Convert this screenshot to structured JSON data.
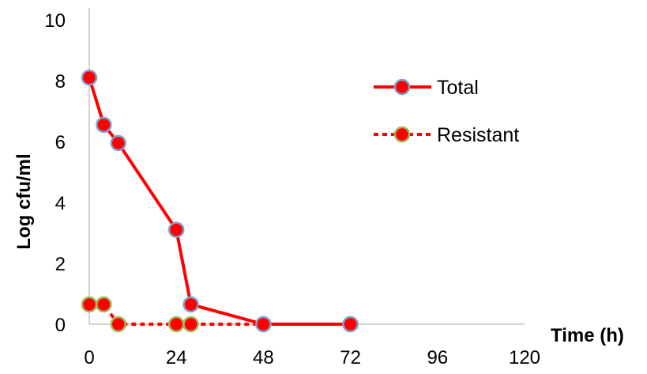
{
  "chart_data": {
    "type": "line",
    "xlabel": "Time (h)",
    "ylabel": "Log cfu/ml",
    "xlim": [
      0,
      120
    ],
    "ylim": [
      0,
      10
    ],
    "x_ticks": [
      "0",
      "24",
      "48",
      "72",
      "96",
      "120"
    ],
    "y_ticks": [
      "0",
      "2",
      "4",
      "6",
      "8",
      "10"
    ],
    "grid": false,
    "legend_position": "right",
    "series": [
      {
        "name": "Total",
        "line_style": "solid",
        "color": "#ff0000",
        "marker_color": "#ff0000",
        "marker_edge_color": "#7f9fcf",
        "x": [
          0,
          4,
          8,
          24,
          28,
          48,
          72
        ],
        "y": [
          8.1,
          6.55,
          5.95,
          3.1,
          0.65,
          0,
          0
        ]
      },
      {
        "name": "Resistant",
        "line_style": "dashed",
        "color": "#ff0000",
        "marker_color": "#ff0000",
        "marker_edge_color": "#9bbb59",
        "x": [
          0,
          4,
          8,
          24,
          28,
          48,
          72
        ],
        "y": [
          0.65,
          0.65,
          0,
          0,
          0,
          0,
          0
        ]
      }
    ]
  }
}
